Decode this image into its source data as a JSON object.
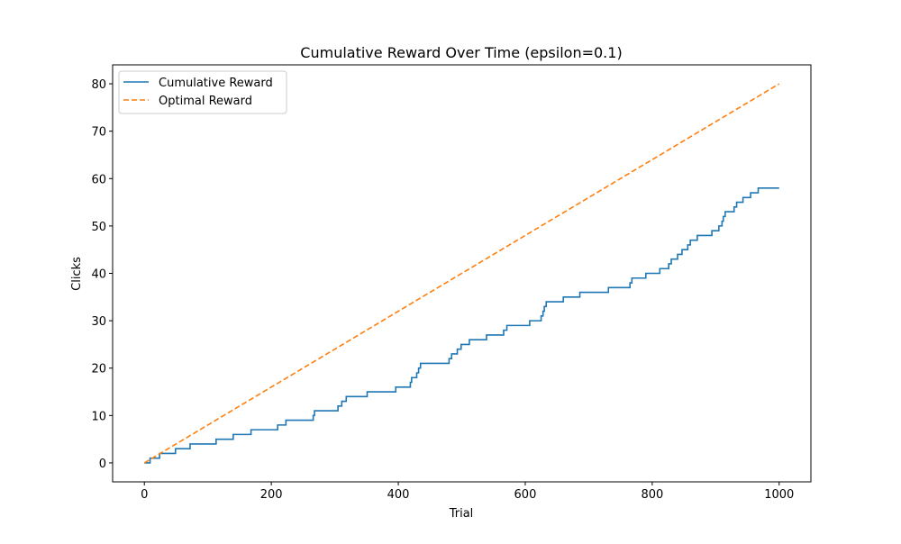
{
  "chart_data": {
    "type": "line",
    "title": "Cumulative Reward Over Time (epsilon=0.1)",
    "xlabel": "Trial",
    "ylabel": "Clicks",
    "xlim": [
      -50,
      1050
    ],
    "ylim": [
      -4,
      84
    ],
    "xticks": [
      0,
      200,
      400,
      600,
      800,
      1000
    ],
    "yticks": [
      0,
      10,
      20,
      30,
      40,
      50,
      60,
      70,
      80
    ],
    "grid": false,
    "legend_position": "top-left",
    "series": [
      {
        "name": "Cumulative Reward",
        "color": "#1f77b4",
        "style": "solid",
        "drawstyle": "steps-post",
        "x": [
          0,
          9,
          17,
          24,
          49,
          72,
          113,
          140,
          168,
          210,
          223,
          266,
          268,
          305,
          311,
          318,
          351,
          396,
          419,
          421,
          429,
          432,
          435,
          448,
          480,
          484,
          493,
          499,
          512,
          539,
          566,
          571,
          575,
          580,
          607,
          625,
          628,
          630,
          633,
          660,
          686,
          731,
          765,
          768,
          777,
          790,
          812,
          826,
          830,
          840,
          847,
          856,
          860,
          871,
          894,
          905,
          910,
          912,
          915,
          916,
          929,
          933,
          943,
          953,
          955,
          959,
          967,
          1000
        ],
        "values": [
          0,
          1,
          1,
          2,
          3,
          4,
          5,
          6,
          7,
          8,
          9,
          10,
          11,
          12,
          13,
          14,
          15,
          16,
          17,
          18,
          19,
          20,
          21,
          21,
          22,
          23,
          24,
          25,
          26,
          27,
          28,
          29,
          29,
          29,
          30,
          31,
          32,
          33,
          34,
          35,
          36,
          37,
          38,
          39,
          39,
          40,
          41,
          42,
          43,
          44,
          45,
          46,
          47,
          48,
          49,
          50,
          51,
          52,
          53,
          53,
          54,
          55,
          56,
          56,
          57,
          57,
          58,
          58
        ]
      },
      {
        "name": "Optimal Reward",
        "color": "#ff7f0e",
        "style": "dashed",
        "drawstyle": "default",
        "x": [
          0,
          1000
        ],
        "values": [
          0,
          80
        ]
      }
    ]
  }
}
